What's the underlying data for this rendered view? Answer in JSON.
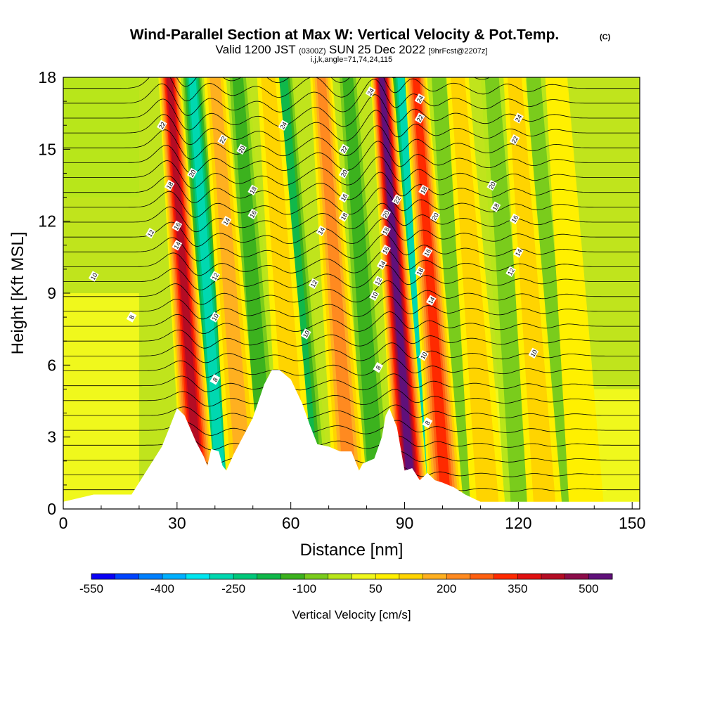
{
  "chart_data": {
    "type": "heatmap",
    "title": "Wind-Parallel Section at Max W: Vertical Velocity & Pot.Temp.",
    "title_mark": "(C)",
    "subtitle_main": "Valid 1200 JST",
    "subtitle_z": "(0300Z)",
    "subtitle_date": "SUN 25 Dec 2022",
    "subtitle_fcst": "[9hrFcst@2207z]",
    "subtitle_ijk": "i,j,k,angle=71,74,24,115",
    "xlabel": "Distance [nm]",
    "ylabel": "Height [Kft MSL]",
    "xlim": [
      0,
      152
    ],
    "ylim": [
      0,
      18
    ],
    "x_ticks": [
      0,
      30,
      60,
      90,
      120,
      150
    ],
    "y_ticks": [
      0,
      3,
      6,
      9,
      12,
      15,
      18
    ],
    "colorbar": {
      "label": "Vertical Velocity [cm/s]",
      "tick_labels": [
        "-550",
        "-400",
        "-250",
        "-100",
        "50",
        "200",
        "350",
        "500"
      ],
      "colors": [
        "#0a00f5",
        "#0044ff",
        "#0080ff",
        "#00b0ff",
        "#00e6f0",
        "#00d8b0",
        "#00c87a",
        "#10b84a",
        "#3cb21e",
        "#7acc1c",
        "#b8e61a",
        "#f0f81c",
        "#fff000",
        "#ffd400",
        "#ffb020",
        "#ff8a20",
        "#ff6010",
        "#ff2a00",
        "#e01010",
        "#b40c24",
        "#8c0c4a",
        "#60107a"
      ]
    },
    "terrain_kft": [
      [
        0,
        0.3
      ],
      [
        8,
        0.6
      ],
      [
        18,
        0.6
      ],
      [
        22,
        1.6
      ],
      [
        26,
        2.6
      ],
      [
        28,
        3.4
      ],
      [
        30,
        4.2
      ],
      [
        32,
        3.9
      ],
      [
        35,
        2.8
      ],
      [
        37,
        2.2
      ],
      [
        38,
        1.8
      ],
      [
        39,
        2.5
      ],
      [
        41,
        2.4
      ],
      [
        42,
        1.8
      ],
      [
        43,
        1.6
      ],
      [
        45,
        2.3
      ],
      [
        47,
        2.9
      ],
      [
        50,
        3.8
      ],
      [
        53,
        5.2
      ],
      [
        55,
        5.8
      ],
      [
        57,
        5.8
      ],
      [
        60,
        5.4
      ],
      [
        63,
        4.4
      ],
      [
        65,
        3.5
      ],
      [
        67,
        2.7
      ],
      [
        70,
        2.6
      ],
      [
        73,
        2.4
      ],
      [
        76,
        2.4
      ],
      [
        78,
        1.6
      ],
      [
        79,
        1.9
      ],
      [
        82,
        2.1
      ],
      [
        84,
        3.0
      ],
      [
        85,
        3.9
      ],
      [
        86,
        4.2
      ],
      [
        88,
        3.4
      ],
      [
        90,
        1.6
      ],
      [
        92,
        1.7
      ],
      [
        94,
        1.2
      ],
      [
        96,
        1.5
      ],
      [
        98,
        1.2
      ],
      [
        100,
        1.1
      ],
      [
        103,
        0.9
      ],
      [
        106,
        0.6
      ],
      [
        110,
        0.3
      ],
      [
        152,
        0.3
      ]
    ],
    "updrafts": [
      [
        34,
        400
      ],
      [
        46,
        150
      ],
      [
        60,
        100
      ],
      [
        74,
        220
      ],
      [
        90,
        520
      ],
      [
        99,
        300
      ],
      [
        110,
        120
      ],
      [
        125,
        120
      ],
      [
        136,
        80
      ]
    ],
    "downdrafts": [
      [
        40,
        -300
      ],
      [
        52,
        -150
      ],
      [
        64,
        -200
      ],
      [
        81,
        -180
      ],
      [
        95,
        -330
      ],
      [
        105,
        -120
      ],
      [
        119,
        -120
      ],
      [
        130,
        -100
      ]
    ],
    "theta_labels": [
      {
        "x": 26,
        "y": 16.0,
        "v": "22"
      },
      {
        "x": 34,
        "y": 14.0,
        "v": "20"
      },
      {
        "x": 28,
        "y": 13.5,
        "v": "18"
      },
      {
        "x": 23,
        "y": 11.5,
        "v": "12"
      },
      {
        "x": 30,
        "y": 11.8,
        "v": "16"
      },
      {
        "x": 30,
        "y": 11.0,
        "v": "14"
      },
      {
        "x": 8,
        "y": 9.7,
        "v": "10"
      },
      {
        "x": 18,
        "y": 8.0,
        "v": "8"
      },
      {
        "x": 42,
        "y": 15.4,
        "v": "22"
      },
      {
        "x": 47,
        "y": 15.0,
        "v": "20"
      },
      {
        "x": 43,
        "y": 12.0,
        "v": "14"
      },
      {
        "x": 40,
        "y": 9.7,
        "v": "12"
      },
      {
        "x": 40,
        "y": 8.0,
        "v": "10"
      },
      {
        "x": 40,
        "y": 5.4,
        "v": "8"
      },
      {
        "x": 58,
        "y": 16.0,
        "v": "24"
      },
      {
        "x": 50,
        "y": 13.3,
        "v": "18"
      },
      {
        "x": 50,
        "y": 12.3,
        "v": "16"
      },
      {
        "x": 68,
        "y": 11.6,
        "v": "14"
      },
      {
        "x": 66,
        "y": 9.4,
        "v": "12"
      },
      {
        "x": 64,
        "y": 7.3,
        "v": "10"
      },
      {
        "x": 74,
        "y": 15.0,
        "v": "22"
      },
      {
        "x": 74,
        "y": 14.0,
        "v": "20"
      },
      {
        "x": 74,
        "y": 13.0,
        "v": "16"
      },
      {
        "x": 74,
        "y": 12.2,
        "v": "18"
      },
      {
        "x": 81,
        "y": 17.4,
        "v": "24"
      },
      {
        "x": 85,
        "y": 12.3,
        "v": "20"
      },
      {
        "x": 85,
        "y": 11.6,
        "v": "18"
      },
      {
        "x": 85,
        "y": 10.8,
        "v": "16"
      },
      {
        "x": 84,
        "y": 10.2,
        "v": "14"
      },
      {
        "x": 83,
        "y": 9.5,
        "v": "12"
      },
      {
        "x": 82,
        "y": 8.9,
        "v": "10"
      },
      {
        "x": 83,
        "y": 5.9,
        "v": "8"
      },
      {
        "x": 88,
        "y": 12.9,
        "v": "22"
      },
      {
        "x": 94,
        "y": 17.1,
        "v": "24"
      },
      {
        "x": 94,
        "y": 16.3,
        "v": "22"
      },
      {
        "x": 95,
        "y": 13.3,
        "v": "18"
      },
      {
        "x": 98,
        "y": 12.2,
        "v": "20"
      },
      {
        "x": 96,
        "y": 10.7,
        "v": "16"
      },
      {
        "x": 94,
        "y": 9.9,
        "v": "18"
      },
      {
        "x": 97,
        "y": 8.7,
        "v": "14"
      },
      {
        "x": 95,
        "y": 6.4,
        "v": "10"
      },
      {
        "x": 96,
        "y": 3.6,
        "v": "8"
      },
      {
        "x": 120,
        "y": 16.3,
        "v": "24"
      },
      {
        "x": 119,
        "y": 15.4,
        "v": "22"
      },
      {
        "x": 113,
        "y": 13.5,
        "v": "20"
      },
      {
        "x": 114,
        "y": 12.6,
        "v": "18"
      },
      {
        "x": 119,
        "y": 12.1,
        "v": "16"
      },
      {
        "x": 120,
        "y": 10.7,
        "v": "14"
      },
      {
        "x": 118,
        "y": 9.9,
        "v": "12"
      },
      {
        "x": 124,
        "y": 6.5,
        "v": "10"
      }
    ]
  }
}
